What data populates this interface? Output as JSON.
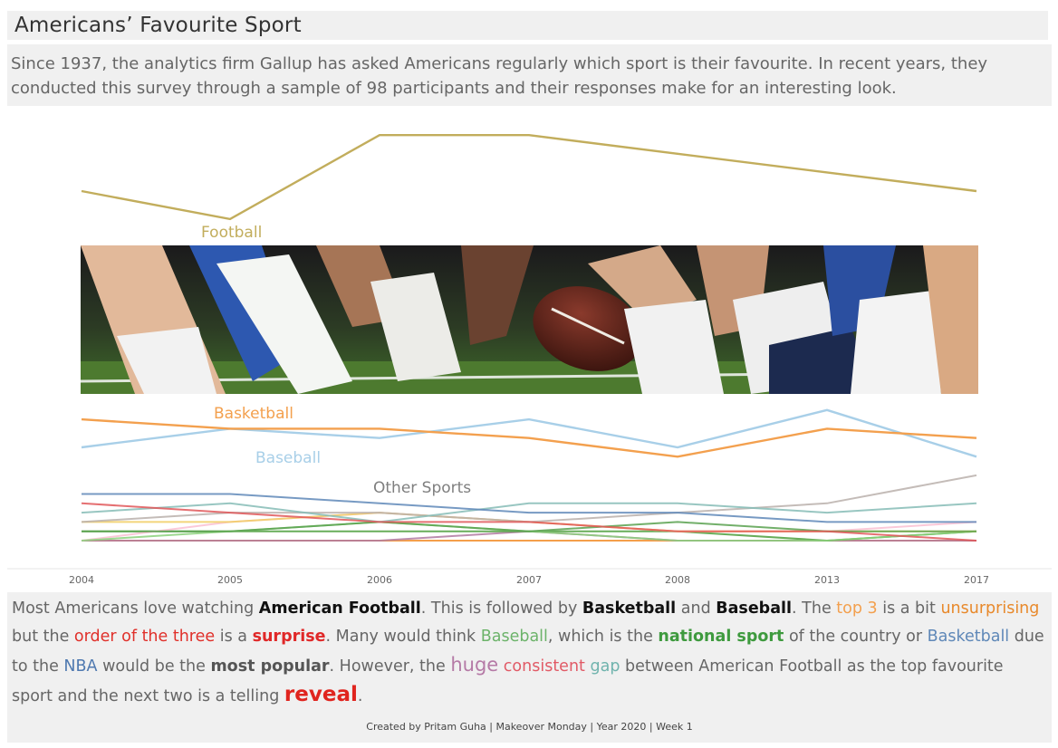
{
  "title": "Americans’ Favourite Sport",
  "intro": "Since 1937, the analytics firm Gallup has asked Americans regularly which sport is their favourite. In recent years, they conducted this survey through a sample of 98 participants and their responses make for an interesting look.",
  "chart_data": {
    "type": "line",
    "x": [
      "2004",
      "2005",
      "2006",
      "2007",
      "2008",
      "2013",
      "2017"
    ],
    "series": [
      {
        "name": "Football",
        "color": "#c2ad5c",
        "values": [
          37,
          34,
          43,
          43,
          41,
          39,
          37
        ]
      },
      {
        "name": "Basketball",
        "color": "#f3a04e",
        "values": [
          13,
          12,
          12,
          11,
          9,
          12,
          11
        ]
      },
      {
        "name": "Baseball",
        "color": "#a8cfe8",
        "values": [
          10,
          12,
          11,
          13,
          10,
          14,
          9
        ]
      },
      {
        "name": "",
        "color": "#5f88b8",
        "values": [
          5,
          5,
          4,
          3,
          3,
          2,
          2
        ]
      },
      {
        "name": "",
        "color": "#e15759",
        "values": [
          4,
          3,
          2,
          2,
          1,
          1,
          0
        ]
      },
      {
        "name": "",
        "color": "#86bcb6",
        "values": [
          3,
          4,
          2,
          4,
          4,
          3,
          4
        ]
      },
      {
        "name": "",
        "color": "#bab0ac",
        "values": [
          2,
          3,
          3,
          2,
          3,
          4,
          7
        ]
      },
      {
        "name": "",
        "color": "#59a14f",
        "values": [
          1,
          1,
          2,
          1,
          2,
          1,
          1
        ]
      },
      {
        "name": "",
        "color": "#f1ce63",
        "values": [
          2,
          2,
          3,
          2,
          1,
          1,
          1
        ]
      },
      {
        "name": "",
        "color": "#8cd17d",
        "values": [
          0,
          1,
          2,
          1,
          0,
          0,
          1
        ]
      },
      {
        "name": "",
        "color": "#fabfd2",
        "values": [
          0,
          2,
          3,
          2,
          1,
          1,
          2
        ]
      },
      {
        "name": "",
        "color": "#4e9f3d",
        "values": [
          1,
          1,
          1,
          1,
          1,
          0,
          1
        ]
      },
      {
        "name": "",
        "color": "#b07aa1",
        "values": [
          0,
          0,
          0,
          1,
          0,
          0,
          0
        ]
      },
      {
        "name": "",
        "color": "#f28e2b",
        "values": [
          0,
          0,
          0,
          0,
          0,
          0,
          0
        ]
      }
    ],
    "annotations": [
      "Football",
      "Basketball",
      "Baseball",
      "Other Sports"
    ],
    "ylim": [
      0,
      43
    ],
    "grid": false
  },
  "story": {
    "p1": "Most Americans love watching ",
    "american_football": "American Football",
    "p2": ". This is followed by ",
    "basketball_bold": "Basketball",
    "p3": " and ",
    "baseball_bold": "Baseball",
    "p4": ". The ",
    "top3": "top 3",
    "p5": " is a bit ",
    "unsurprising": "unsurprising",
    "p6": " but the ",
    "order": "order of the three",
    "p7": " is a ",
    "surprise": "surprise",
    "p8": ". Many would think ",
    "baseball_green": "Baseball",
    "p9": ", which is the ",
    "national": "national sport",
    "p10": " of the country or ",
    "basketball_blue": "Basketball",
    "p11": " due to the ",
    "nba": "NBA",
    "p12": " would be the ",
    "most_popular": "most popular",
    "p13": ". However, the ",
    "huge": "huge",
    "consistent": "consistent",
    "gap": "gap",
    "p14": " between American Football as the top favourite sport and the next two is a telling ",
    "reveal": "reveal",
    "p15": ".",
    "dots": ".."
  },
  "colors": {
    "top3": "#f3a04e",
    "unsurprising": "#e8892b",
    "order": "#e0302a",
    "surprise": "#e02828",
    "baseball_green": "#6cb36a",
    "national": "#3e9a3e",
    "basketball_blue": "#5f88b8",
    "nba": "#4f79b0",
    "huge": "#b57aa6",
    "consistent": "#e15a66",
    "gap": "#6fb3ad",
    "reveal": "#e0241e"
  },
  "footer": "Created by Pritam Guha | Makeover Monday | Year 2020 | Week 1"
}
